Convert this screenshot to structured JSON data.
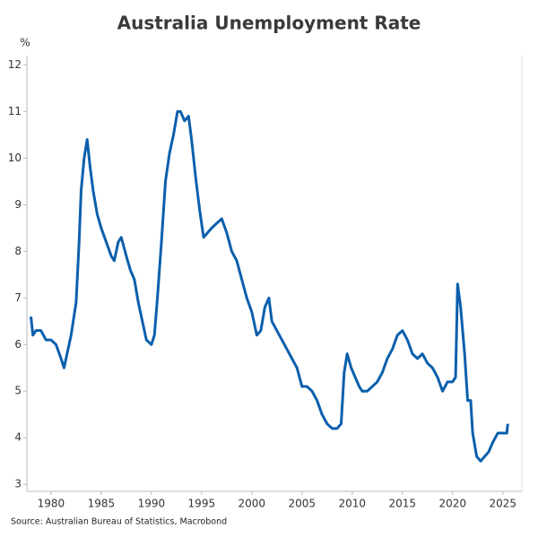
{
  "chart_data": {
    "type": "line",
    "title": "Australia Unemployment Rate",
    "y_label": "%",
    "source": "Source: Australian Bureau of Statistics, Macrobond",
    "color": "#0b5fac",
    "xlim": [
      1977.6,
      2026.9
    ],
    "ylim": [
      2.85,
      12.2
    ],
    "xticks": [
      1980,
      1985,
      1990,
      1995,
      2000,
      2005,
      2010,
      2015,
      2020,
      2025
    ],
    "yticks": [
      3,
      4,
      5,
      6,
      7,
      8,
      9,
      10,
      11,
      12
    ],
    "x": [
      1978.0,
      1978.2,
      1978.5,
      1979.0,
      1979.5,
      1980.0,
      1980.5,
      1981.0,
      1981.3,
      1981.6,
      1982.0,
      1982.5,
      1982.8,
      1983.0,
      1983.3,
      1983.6,
      1983.9,
      1984.2,
      1984.6,
      1985.0,
      1985.5,
      1986.0,
      1986.3,
      1986.7,
      1987.0,
      1987.5,
      1987.9,
      1988.3,
      1988.7,
      1989.0,
      1989.5,
      1990.0,
      1990.3,
      1990.6,
      1991.0,
      1991.4,
      1991.8,
      1992.2,
      1992.6,
      1992.9,
      1993.3,
      1993.7,
      1994.0,
      1994.4,
      1994.8,
      1995.2,
      1995.6,
      1996.0,
      1996.5,
      1997.0,
      1997.5,
      1998.0,
      1998.5,
      1999.0,
      1999.5,
      2000.0,
      2000.5,
      2000.9,
      2001.3,
      2001.7,
      2002.0,
      2002.5,
      2003.0,
      2003.5,
      2004.0,
      2004.5,
      2005.0,
      2005.5,
      2006.0,
      2006.5,
      2007.0,
      2007.5,
      2008.0,
      2008.5,
      2008.9,
      2009.2,
      2009.5,
      2009.9,
      2010.3,
      2010.7,
      2011.0,
      2011.5,
      2012.0,
      2012.5,
      2013.0,
      2013.5,
      2014.0,
      2014.5,
      2015.0,
      2015.5,
      2016.0,
      2016.5,
      2017.0,
      2017.5,
      2018.0,
      2018.5,
      2019.0,
      2019.5,
      2020.0,
      2020.3,
      2020.5,
      2020.8,
      2021.2,
      2021.5,
      2021.8,
      2022.0,
      2022.4,
      2022.8,
      2023.2,
      2023.6,
      2024.0,
      2024.5,
      2025.0,
      2025.4,
      2025.5
    ],
    "values": [
      6.6,
      6.2,
      6.3,
      6.3,
      6.1,
      6.1,
      6.0,
      5.7,
      5.5,
      5.8,
      6.2,
      6.9,
      8.2,
      9.3,
      10.0,
      10.4,
      9.8,
      9.3,
      8.8,
      8.5,
      8.2,
      7.9,
      7.8,
      8.2,
      8.3,
      7.9,
      7.6,
      7.4,
      6.9,
      6.6,
      6.1,
      6.0,
      6.2,
      7.0,
      8.2,
      9.5,
      10.1,
      10.5,
      11.0,
      11.0,
      10.8,
      10.9,
      10.4,
      9.6,
      8.9,
      8.3,
      8.4,
      8.5,
      8.6,
      8.7,
      8.4,
      8.0,
      7.8,
      7.4,
      7.0,
      6.7,
      6.2,
      6.3,
      6.8,
      7.0,
      6.5,
      6.3,
      6.1,
      5.9,
      5.7,
      5.5,
      5.1,
      5.1,
      5.0,
      4.8,
      4.5,
      4.3,
      4.2,
      4.2,
      4.3,
      5.4,
      5.8,
      5.5,
      5.3,
      5.1,
      5.0,
      5.0,
      5.1,
      5.2,
      5.4,
      5.7,
      5.9,
      6.2,
      6.3,
      6.1,
      5.8,
      5.7,
      5.8,
      5.6,
      5.5,
      5.3,
      5.0,
      5.2,
      5.2,
      5.3,
      7.3,
      6.8,
      5.8,
      4.8,
      4.8,
      4.1,
      3.6,
      3.5,
      3.6,
      3.7,
      3.9,
      4.1,
      4.1,
      4.1,
      4.3
    ]
  }
}
